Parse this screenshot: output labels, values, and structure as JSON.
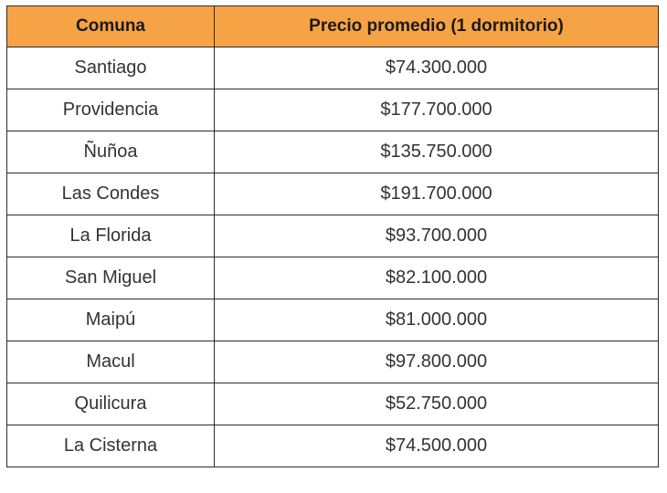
{
  "table": {
    "headers": [
      "Comuna",
      "Precio promedio (1 dormitorio)"
    ],
    "rows": [
      [
        "Santiago",
        "$74.300.000"
      ],
      [
        "Providencia",
        "$177.700.000"
      ],
      [
        "Ñuñoa",
        "$135.750.000"
      ],
      [
        "Las Condes",
        "$191.700.000"
      ],
      [
        "La Florida",
        "$93.700.000"
      ],
      [
        "San Miguel",
        "$82.100.000"
      ],
      [
        "Maipú",
        "$81.000.000"
      ],
      [
        "Macul",
        "$97.800.000"
      ],
      [
        "Quilicura",
        "$52.750.000"
      ],
      [
        "La Cisterna",
        "$74.500.000"
      ]
    ]
  },
  "colors": {
    "header_background": "#f6a345",
    "border": "#2b2b2b",
    "text": "#333333"
  }
}
